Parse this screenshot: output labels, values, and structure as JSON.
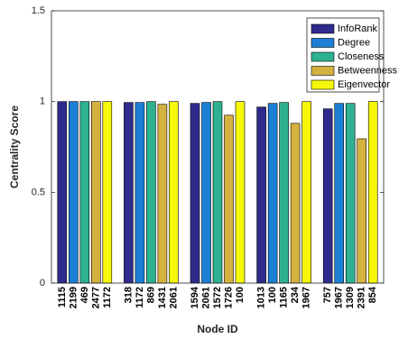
{
  "chart_data": {
    "type": "bar",
    "xlabel": "Node ID",
    "ylabel": "Centrality Score",
    "ylim": [
      0,
      1.5
    ],
    "yticks": [
      "0",
      "0.5",
      "1",
      "1.5"
    ],
    "legend_position": "top-right",
    "series": [
      {
        "name": "InfoRank",
        "color": "#2e2b8c",
        "labels": [
          "1115",
          "318",
          "1594",
          "1013",
          "757"
        ],
        "values": [
          1.0,
          0.995,
          0.99,
          0.97,
          0.96
        ]
      },
      {
        "name": "Degree",
        "color": "#1b7fd6",
        "labels": [
          "2199",
          "1172",
          "2061",
          "100",
          "1967"
        ],
        "values": [
          1.0,
          0.995,
          0.995,
          0.99,
          0.99
        ]
      },
      {
        "name": "Closeness",
        "color": "#2db18f",
        "labels": [
          "469",
          "869",
          "1572",
          "1165",
          "1309"
        ],
        "values": [
          1.0,
          1.0,
          1.0,
          0.995,
          0.99
        ]
      },
      {
        "name": "Betweenness",
        "color": "#d5b13f",
        "labels": [
          "2477",
          "1431",
          "1726",
          "234",
          "2391"
        ],
        "values": [
          1.0,
          0.985,
          0.925,
          0.88,
          0.795
        ]
      },
      {
        "name": "Eigenvector",
        "color": "#f7f709",
        "labels": [
          "1172",
          "2061",
          "100",
          "1967",
          "854"
        ],
        "values": [
          1.0,
          1.0,
          1.0,
          1.0,
          1.0
        ]
      }
    ]
  }
}
